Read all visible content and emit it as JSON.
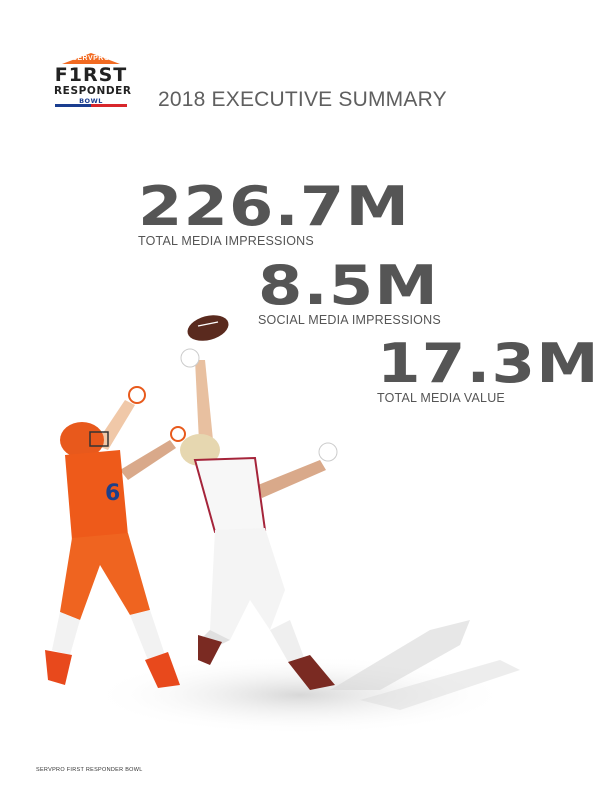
{
  "logo": {
    "brand": "SERVPRO",
    "line1": "F1RST",
    "line2": "RESPONDER",
    "line3": "BOWL",
    "colors": {
      "orange": "#f26a21",
      "blue": "#1a3d8f",
      "red": "#d8262b"
    }
  },
  "header": {
    "title": "2018 EXECUTIVE SUMMARY"
  },
  "stats": [
    {
      "value": "226.7M",
      "label": "TOTAL MEDIA IMPRESSIONS"
    },
    {
      "value": "8.5M",
      "label": "SOCIAL MEDIA IMPRESSIONS"
    },
    {
      "value": "17.3M",
      "label": "TOTAL MEDIA VALUE"
    }
  ],
  "photo": {
    "subject": "two football players leaping for a ball"
  },
  "footer": {
    "text": "SERVPRO FIRST RESPONDER BOWL"
  }
}
